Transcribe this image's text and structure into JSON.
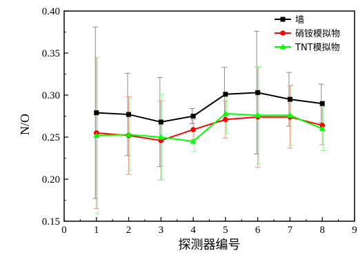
{
  "chart_data": {
    "type": "line",
    "xlabel": "探测器编号",
    "ylabel": "N/O",
    "xlim": [
      0,
      9
    ],
    "ylim": [
      0.15,
      0.4
    ],
    "xticks": [
      "0",
      "1",
      "2",
      "3",
      "4",
      "5",
      "6",
      "7",
      "8",
      "9"
    ],
    "yticks": [
      "0.15",
      "0.20",
      "0.25",
      "0.30",
      "0.35",
      "0.40"
    ],
    "x": [
      1,
      2,
      3,
      4,
      5,
      6,
      7,
      8
    ],
    "legend_position": "top-right",
    "grid": false,
    "series": [
      {
        "name": "墙",
        "color": "#000000",
        "marker": "square",
        "values": [
          0.279,
          0.277,
          0.268,
          0.275,
          0.301,
          0.303,
          0.295,
          0.29
        ],
        "errors": [
          0.102,
          0.049,
          0.053,
          0.009,
          0.032,
          0.073,
          0.032,
          0.023
        ]
      },
      {
        "name": "硝铵模拟物",
        "color": "#ff0000",
        "marker": "circle",
        "values": [
          0.255,
          0.252,
          0.246,
          0.259,
          0.271,
          0.274,
          0.274,
          0.264
        ],
        "errors": [
          0.09,
          0.046,
          0.047,
          0.012,
          0.022,
          0.06,
          0.037,
          0.023
        ]
      },
      {
        "name": "TNT模拟物",
        "color": "#00ff00",
        "marker": "triangle",
        "values": [
          0.252,
          0.253,
          0.25,
          0.245,
          0.278,
          0.276,
          0.276,
          0.26
        ],
        "errors": [
          0.093,
          0.043,
          0.051,
          0.012,
          0.024,
          0.058,
          0.036,
          0.026
        ]
      }
    ]
  }
}
